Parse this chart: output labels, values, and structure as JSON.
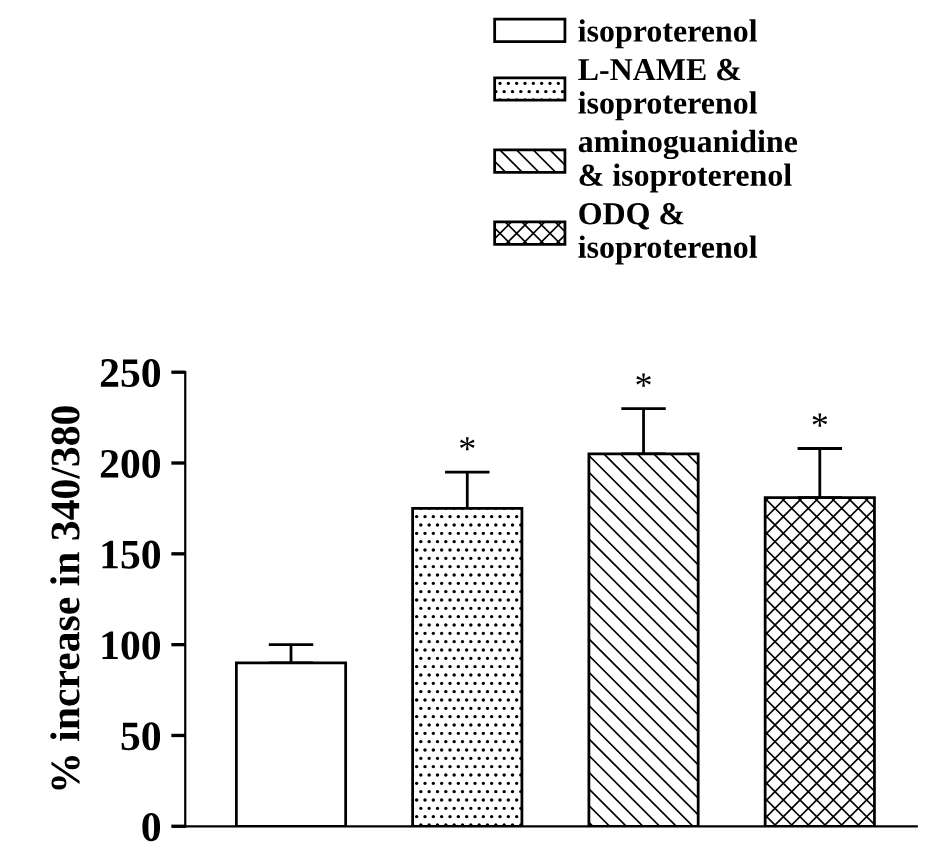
{
  "chart_data": {
    "type": "bar",
    "ylabel": "% increase in 340/380",
    "categories": [
      null,
      null,
      null,
      null
    ],
    "series": [
      {
        "name": "isoproterenol",
        "color": "#ffffff",
        "values": [
          90,
          null,
          null,
          null
        ],
        "errors": [
          10,
          null,
          null,
          null
        ],
        "value_labels": [
          null,
          null,
          null,
          null
        ]
      },
      {
        "name": "L-NAME &\nisoproterenol",
        "color": "#000000",
        "values": [
          null,
          175,
          null,
          null
        ],
        "errors": [
          null,
          20,
          null,
          null
        ],
        "value_labels": [
          null,
          "*",
          null,
          null
        ]
      },
      {
        "name": "aminoguanidine\n& isoproterenol",
        "color": "#000000",
        "values": [
          null,
          null,
          205,
          null
        ],
        "errors": [
          null,
          null,
          25,
          null
        ],
        "value_labels": [
          null,
          null,
          "*",
          null
        ]
      },
      {
        "name": "ODQ &\nisoproterenol",
        "color": "#000000",
        "values": [
          null,
          null,
          null,
          181
        ],
        "errors": [
          null,
          null,
          null,
          27
        ],
        "value_labels": [
          null,
          null,
          null,
          "*"
        ]
      }
    ],
    "ylim": [
      0,
      250
    ],
    "yticks": [
      0,
      50,
      100,
      150,
      200,
      250
    ],
    "grid": false,
    "legend": "top right"
  }
}
